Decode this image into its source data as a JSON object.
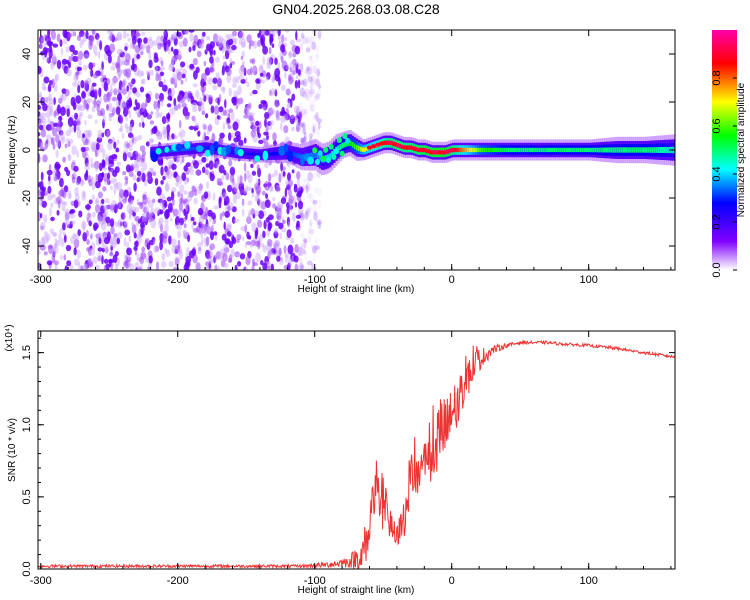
{
  "figure_title": "GN04.2025.268.03.08.C28",
  "chart_data": [
    {
      "type": "heatmap",
      "title": "GN04.2025.268.03.08.C28",
      "xlabel": "Height of straight line (km)",
      "ylabel": "Frequency (Hz)",
      "xlim": [
        -302,
        163
      ],
      "ylim": [
        -50,
        50
      ],
      "xticks": [
        -300,
        -200,
        -100,
        0,
        100
      ],
      "xtick_labels": [
        "-300",
        "-200",
        "-100",
        "0",
        "100"
      ],
      "yticks": [
        -40,
        -20,
        0,
        20,
        40
      ],
      "ytick_labels": [
        "-40",
        "-20",
        "0",
        "20",
        "40"
      ],
      "colorbar": {
        "label": "Normalized spectral amplitude",
        "range": [
          0,
          1
        ],
        "ticks": [
          0.0,
          0.2,
          0.4,
          0.6,
          0.8
        ],
        "tick_labels": [
          "0.0",
          "0.2",
          "0.4",
          "0.6",
          "0.8"
        ],
        "colors": [
          "#ffffff",
          "#8000ff",
          "#0000ff",
          "#00ffff",
          "#00ff00",
          "#ffff00",
          "#ff0000",
          "#ff00aa"
        ]
      },
      "noise_region": {
        "x_range": [
          -302,
          -110
        ],
        "freq_range": [
          -50,
          50
        ]
      },
      "signal_ridge": {
        "x": [
          -220,
          -200,
          -180,
          -160,
          -140,
          -120,
          -110,
          -100,
          -95,
          -90,
          -85,
          -80,
          -75,
          -70,
          -65,
          -60,
          -55,
          -50,
          -45,
          -40,
          -35,
          -30,
          -25,
          -20,
          -15,
          -10,
          -5,
          0,
          20,
          40,
          60,
          80,
          100,
          120,
          140,
          163
        ],
        "freq": [
          -1,
          0,
          1,
          -1,
          -2,
          -1,
          -3,
          -2,
          -4,
          -3,
          0,
          2,
          3,
          1,
          0,
          1,
          2,
          3,
          3,
          2,
          1,
          1,
          0,
          0,
          -1,
          -1,
          -1,
          0,
          0,
          0,
          0,
          0,
          0,
          0,
          0,
          0
        ],
        "amplitude": [
          0.3,
          0.35,
          0.3,
          0.25,
          0.25,
          0.3,
          0.35,
          0.35,
          0.4,
          0.4,
          0.45,
          0.5,
          0.55,
          0.6,
          0.7,
          0.75,
          0.8,
          0.85,
          0.9,
          0.92,
          0.9,
          0.9,
          0.95,
          0.95,
          0.97,
          1.0,
          1.0,
          0.9,
          0.6,
          0.5,
          0.5,
          0.5,
          0.5,
          0.5,
          0.5,
          0.45
        ],
        "bandwidth_hz": [
          3,
          3,
          3,
          3,
          3,
          4,
          5,
          6,
          6,
          6,
          6,
          5,
          5,
          5,
          4,
          4,
          4,
          4,
          4,
          4,
          4,
          4,
          4,
          4,
          4,
          4,
          4,
          4,
          4,
          4,
          4,
          4,
          4,
          5,
          5,
          6
        ]
      }
    },
    {
      "type": "line",
      "xlabel": "Height of straight line (km)",
      "ylabel": "SNR (10 * v/v)",
      "y_multiplier": "(x10⁴)",
      "xlim": [
        -302,
        163
      ],
      "ylim": [
        0,
        1.65
      ],
      "xticks": [
        -300,
        -200,
        -100,
        0,
        100
      ],
      "xtick_labels": [
        "-300",
        "-200",
        "-100",
        "0",
        "100"
      ],
      "yticks": [
        0.0,
        0.5,
        1.0,
        1.5
      ],
      "ytick_labels": [
        "0.0",
        "0.5",
        "1.0",
        "1.5"
      ],
      "color": "#ee3333",
      "envelope": {
        "x": [
          -302,
          -250,
          -200,
          -150,
          -110,
          -90,
          -75,
          -65,
          -60,
          -55,
          -50,
          -45,
          -40,
          -35,
          -30,
          -25,
          -20,
          -15,
          -10,
          -5,
          0,
          5,
          10,
          15,
          20,
          30,
          40,
          50,
          60,
          70,
          80,
          100,
          120,
          140,
          163
        ],
        "y": [
          0.02,
          0.02,
          0.02,
          0.02,
          0.02,
          0.03,
          0.05,
          0.1,
          0.3,
          0.55,
          0.45,
          0.3,
          0.2,
          0.35,
          0.6,
          0.7,
          0.75,
          0.8,
          0.9,
          0.95,
          1.05,
          1.15,
          1.3,
          1.4,
          1.45,
          1.52,
          1.55,
          1.57,
          1.57,
          1.57,
          1.56,
          1.55,
          1.53,
          1.5,
          1.47
        ],
        "noise": [
          0.01,
          0.01,
          0.01,
          0.01,
          0.01,
          0.02,
          0.04,
          0.12,
          0.2,
          0.25,
          0.2,
          0.12,
          0.1,
          0.15,
          0.15,
          0.2,
          0.2,
          0.2,
          0.25,
          0.25,
          0.2,
          0.2,
          0.15,
          0.12,
          0.08,
          0.03,
          0.015,
          0.01,
          0.01,
          0.01,
          0.01,
          0.01,
          0.01,
          0.01,
          0.01
        ]
      }
    }
  ]
}
